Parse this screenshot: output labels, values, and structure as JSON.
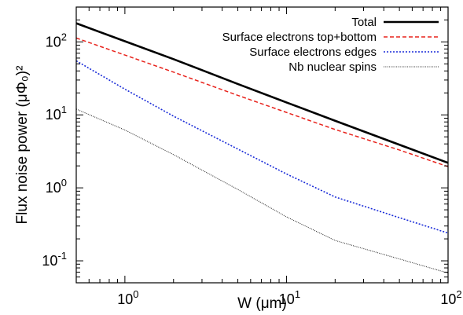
{
  "chart_data": {
    "type": "line",
    "title": "",
    "xlabel": "W (μm)",
    "ylabel": "Flux noise power (μΦ₀)²",
    "x_scale": "log",
    "y_scale": "log",
    "xlim": [
      0.5,
      100
    ],
    "ylim": [
      0.05,
      300
    ],
    "grid": false,
    "legend_position": "top-right",
    "x_ticks": [
      {
        "value": 1,
        "base": "10",
        "exp": "0"
      },
      {
        "value": 10,
        "base": "10",
        "exp": "1"
      },
      {
        "value": 100,
        "base": "10",
        "exp": "2"
      }
    ],
    "y_ticks": [
      {
        "value": 0.1,
        "base": "10",
        "exp": "-1"
      },
      {
        "value": 1,
        "base": "10",
        "exp": "0"
      },
      {
        "value": 10,
        "base": "10",
        "exp": "1"
      },
      {
        "value": 100,
        "base": "10",
        "exp": "2"
      }
    ],
    "series": [
      {
        "name": "Total",
        "color": "#000000",
        "dash": "solid",
        "width": 2.6,
        "x": [
          0.5,
          1,
          2,
          5,
          10,
          20,
          50,
          100
        ],
        "y": [
          180,
          102,
          58,
          26.5,
          14.8,
          8.3,
          3.9,
          2.2
        ]
      },
      {
        "name": "Surface electrons top+bottom",
        "color": "#e8231c",
        "dash": "dashed",
        "width": 1.5,
        "x": [
          0.5,
          1,
          2,
          5,
          10,
          20,
          50,
          100
        ],
        "y": [
          113,
          66,
          38.5,
          18.5,
          10.8,
          6.3,
          3.3,
          1.95
        ]
      },
      {
        "name": "Surface electrons edges",
        "color": "#1a2cd8",
        "dash": "dotted",
        "width": 1.6,
        "x": [
          0.5,
          1,
          2,
          5,
          10,
          20,
          50,
          100
        ],
        "y": [
          55,
          22.5,
          9.6,
          3.4,
          1.55,
          0.75,
          0.39,
          0.24
        ]
      },
      {
        "name": "Nb nuclear spins",
        "color": "#333333",
        "dash": "dotted-fine",
        "width": 1.1,
        "x": [
          0.5,
          1,
          2,
          5,
          10,
          20,
          50,
          100
        ],
        "y": [
          12,
          6.2,
          2.85,
          0.95,
          0.4,
          0.19,
          0.106,
          0.068
        ]
      }
    ]
  }
}
